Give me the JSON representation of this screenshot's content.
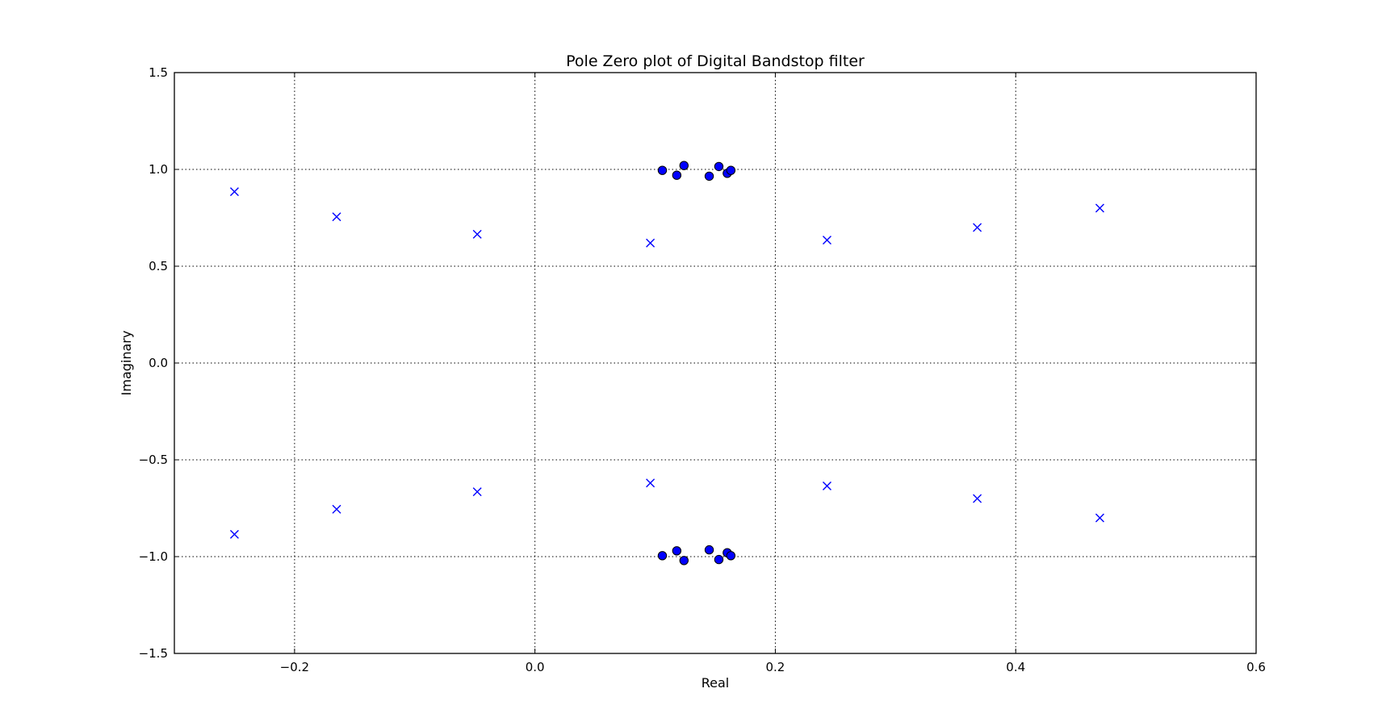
{
  "chart_data": {
    "type": "scatter",
    "title": "Pole Zero plot of Digital Bandstop filter",
    "xlabel": "Real",
    "ylabel": "Imaginary",
    "xlim": [
      -0.3,
      0.6
    ],
    "ylim": [
      -1.5,
      1.5
    ],
    "x_ticks": [
      -0.2,
      0.0,
      0.2,
      0.4,
      0.6
    ],
    "y_ticks": [
      -1.5,
      -1.0,
      -0.5,
      0.0,
      0.5,
      1.0,
      1.5
    ],
    "x_tick_labels": [
      "−0.2",
      "0.0",
      "0.2",
      "0.4",
      "0.6"
    ],
    "y_tick_labels": [
      "−1.5",
      "−1.0",
      "−0.5",
      "0.0",
      "0.5",
      "1.0",
      "1.5"
    ],
    "grid": true,
    "series": [
      {
        "marker": "x",
        "color": "#0000ff",
        "points": [
          {
            "x": -0.25,
            "y": 0.885
          },
          {
            "x": -0.165,
            "y": 0.755
          },
          {
            "x": -0.048,
            "y": 0.665
          },
          {
            "x": 0.096,
            "y": 0.62
          },
          {
            "x": 0.243,
            "y": 0.635
          },
          {
            "x": 0.368,
            "y": 0.7
          },
          {
            "x": 0.47,
            "y": 0.8
          },
          {
            "x": -0.25,
            "y": -0.885
          },
          {
            "x": -0.165,
            "y": -0.755
          },
          {
            "x": -0.048,
            "y": -0.665
          },
          {
            "x": 0.096,
            "y": -0.62
          },
          {
            "x": 0.243,
            "y": -0.635
          },
          {
            "x": 0.368,
            "y": -0.7
          },
          {
            "x": 0.47,
            "y": -0.8
          }
        ]
      },
      {
        "marker": "o",
        "color": "#0000ff",
        "points": [
          {
            "x": 0.106,
            "y": 0.995
          },
          {
            "x": 0.118,
            "y": 0.97
          },
          {
            "x": 0.124,
            "y": 1.02
          },
          {
            "x": 0.145,
            "y": 0.965
          },
          {
            "x": 0.153,
            "y": 1.015
          },
          {
            "x": 0.16,
            "y": 0.98
          },
          {
            "x": 0.163,
            "y": 0.995
          },
          {
            "x": 0.106,
            "y": -0.995
          },
          {
            "x": 0.118,
            "y": -0.97
          },
          {
            "x": 0.124,
            "y": -1.02
          },
          {
            "x": 0.145,
            "y": -0.965
          },
          {
            "x": 0.153,
            "y": -1.015
          },
          {
            "x": 0.16,
            "y": -0.98
          },
          {
            "x": 0.163,
            "y": -0.995
          }
        ]
      }
    ]
  }
}
